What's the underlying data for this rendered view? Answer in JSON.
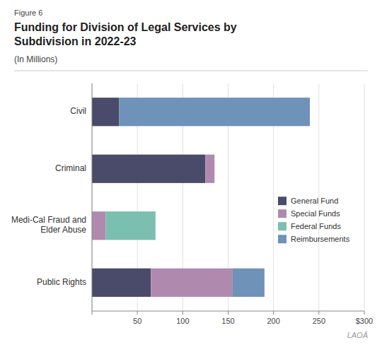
{
  "chart_data": {
    "type": "bar",
    "orientation": "horizontal",
    "stacked": true,
    "title": "Funding for Division of Legal Services by\nSubdivision in 2022-23",
    "subtitle": "(In Millions)",
    "annotations": [
      "Figure 6",
      "LAOÂ"
    ],
    "categories": [
      "Civil",
      "Criminal",
      "Medi-Cal Fraud and\nElder Abuse",
      "Public Rights"
    ],
    "series": [
      {
        "name": "General Fund",
        "color": "#4a4a6a",
        "values": [
          30,
          125,
          0,
          65
        ]
      },
      {
        "name": "Special Funds",
        "color": "#b08aae",
        "values": [
          0,
          10,
          15,
          90
        ]
      },
      {
        "name": "Federal Funds",
        "color": "#7bbfb0",
        "values": [
          0,
          0,
          55,
          0
        ]
      },
      {
        "name": "Reimbursements",
        "color": "#6e92b8",
        "values": [
          210,
          0,
          0,
          35
        ]
      }
    ],
    "xlim": [
      0,
      300
    ],
    "xticks": [
      {
        "value": 0,
        "label": null
      },
      50,
      100,
      150,
      200,
      250,
      {
        "value": 300,
        "label": "$300"
      }
    ],
    "grid": true,
    "legend": "right"
  }
}
